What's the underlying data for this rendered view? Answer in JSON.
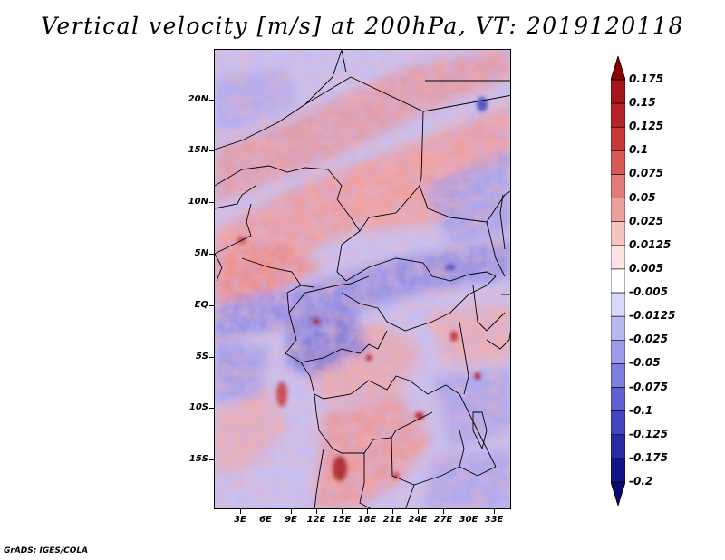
{
  "title": "Vertical velocity [m/s] at 200hPa, VT: 2019120118",
  "footer": "GrADS: IGES/COLA",
  "map": {
    "lat_labels": [
      "20N",
      "15N",
      "10N",
      "5N",
      "EQ",
      "5S",
      "10S",
      "15S"
    ],
    "lon_labels": [
      "3E",
      "6E",
      "9E",
      "12E",
      "15E",
      "18E",
      "21E",
      "24E",
      "27E",
      "30E",
      "33E"
    ],
    "lat_range": [
      -20,
      24.5
    ],
    "lon_range": [
      0,
      35
    ]
  },
  "colorbar": {
    "labels": [
      "0.175",
      "0.15",
      "0.125",
      "0.1",
      "0.075",
      "0.05",
      "0.025",
      "0.0125",
      "0.005",
      "-0.005",
      "-0.0125",
      "-0.025",
      "-0.05",
      "-0.075",
      "-0.1",
      "-0.125",
      "-0.175",
      "-0.2"
    ],
    "colors": [
      "#8b0000",
      "#a4161a",
      "#b8222a",
      "#c8383a",
      "#d65a58",
      "#e07b78",
      "#eba09c",
      "#f5c3c0",
      "#fbe3e1",
      "#ffffff",
      "#d8d8f8",
      "#b8b8f0",
      "#9c9cea",
      "#7e7edf",
      "#6060d0",
      "#4444bf",
      "#2a2aa8",
      "#14148a",
      "#0a0a6e"
    ]
  }
}
